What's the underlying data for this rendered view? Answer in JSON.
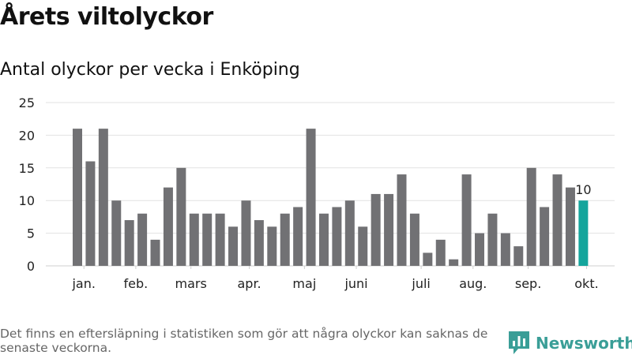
{
  "header": {
    "title": "Årets viltolyckor",
    "subtitle": "Antal olyckor per vecka i Enköping"
  },
  "footer": {
    "note": "Det finns en eftersläpning i statistiken som gör att några olyckor kan saknas de senaste veckorna.",
    "brand": "Newsworthy"
  },
  "colors": {
    "bar": "#717174",
    "highlight": "#14a59c",
    "grid": "#e2e2e2",
    "brand": "#3a9e97"
  },
  "chart_data": {
    "type": "bar",
    "title": "Antal olyckor per vecka i Enköping",
    "xlabel": "",
    "ylabel": "",
    "ylim": [
      0,
      25
    ],
    "yticks": [
      0,
      5,
      10,
      15,
      20,
      25
    ],
    "grid": true,
    "values": [
      21,
      16,
      21,
      10,
      7,
      8,
      4,
      12,
      15,
      8,
      8,
      8,
      6,
      10,
      7,
      6,
      8,
      9,
      21,
      8,
      9,
      10,
      6,
      11,
      11,
      14,
      8,
      2,
      4,
      1,
      14,
      5,
      8,
      5,
      3,
      15,
      9,
      14,
      12,
      10
    ],
    "highlight_index": 39,
    "highlight_label": "10",
    "month_labels": [
      {
        "label": "jan.",
        "at_bar": 0.5
      },
      {
        "label": "feb.",
        "at_bar": 4.5
      },
      {
        "label": "mars",
        "at_bar": 8.75
      },
      {
        "label": "apr.",
        "at_bar": 13.25
      },
      {
        "label": "maj",
        "at_bar": 17.5
      },
      {
        "label": "juni",
        "at_bar": 21.5
      },
      {
        "label": "juli",
        "at_bar": 26.5
      },
      {
        "label": "aug.",
        "at_bar": 30.5
      },
      {
        "label": "sep.",
        "at_bar": 34.75
      },
      {
        "label": "okt.",
        "at_bar": 39.25
      }
    ]
  }
}
